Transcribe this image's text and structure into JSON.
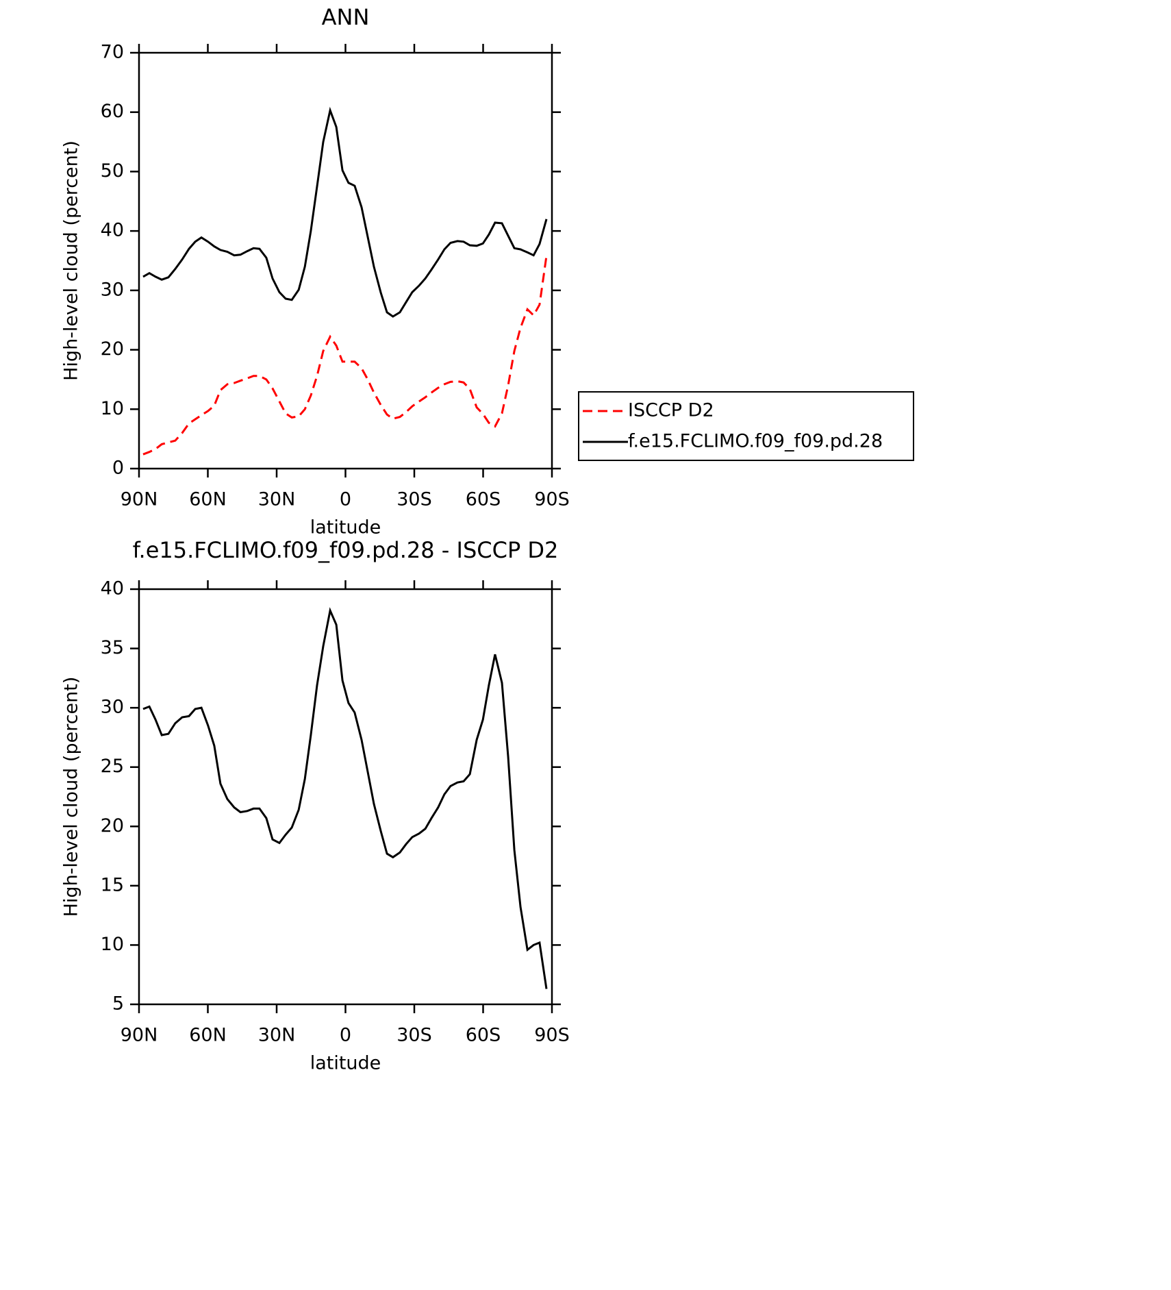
{
  "chart_data": [
    {
      "type": "line",
      "title": "ANN",
      "x_label": "latitude",
      "y_label": "High-level cloud (percent)",
      "x": [
        88.2,
        85.5,
        82.8,
        80.1,
        77.2,
        74.2,
        71.2,
        68.2,
        65.5,
        62.8,
        59.9,
        57.2,
        54.5,
        51.5,
        48.5,
        45.8,
        42.8,
        40.1,
        37.5,
        34.5,
        31.8,
        28.8,
        26.1,
        23.4,
        20.4,
        17.7,
        15.1,
        12.4,
        9.7,
        6.7,
        4.0,
        1.3,
        -1.3,
        -4.0,
        -7.0,
        -9.7,
        -12.4,
        -15.4,
        -18.1,
        -20.7,
        -23.7,
        -26.4,
        -29.1,
        -32.1,
        -34.8,
        -37.5,
        -40.4,
        -43.1,
        -45.8,
        -48.8,
        -51.5,
        -54.2,
        -57.2,
        -59.9,
        -62.5,
        -65.2,
        -68.2,
        -70.9,
        -73.6,
        -76.3,
        -79.3,
        -82.0,
        -84.6,
        -87.6
      ],
      "series": [
        {
          "name": "ISCCP D2",
          "color": "#ff0000",
          "dashed": true,
          "values": [
            2.4,
            2.8,
            3.3,
            4.1,
            4.4,
            4.7,
            6.0,
            7.6,
            8.3,
            9.0,
            9.7,
            10.6,
            13.2,
            14.2,
            14.4,
            14.8,
            15.2,
            15.6,
            15.6,
            15.0,
            13.5,
            11.3,
            9.3,
            8.6,
            8.8,
            10.0,
            12.3,
            15.6,
            19.8,
            22.2,
            20.7,
            18.0,
            18.0,
            18.0,
            16.9,
            15.0,
            12.8,
            10.7,
            9.1,
            8.4,
            8.7,
            9.5,
            10.5,
            11.3,
            12.0,
            12.8,
            13.6,
            14.2,
            14.6,
            14.7,
            14.5,
            13.4,
            10.3,
            9.2,
            7.7,
            7.1,
            9.3,
            14.0,
            19.8,
            23.7,
            26.8,
            25.8,
            27.6,
            35.8
          ]
        },
        {
          "name": "f.e15.FCLIMO.f09_f09.pd.28",
          "color": "#000000",
          "dashed": false,
          "values": [
            32.3,
            32.9,
            32.3,
            31.8,
            32.2,
            33.6,
            35.2,
            37.0,
            38.2,
            38.9,
            38.2,
            37.4,
            36.8,
            36.5,
            35.9,
            36.0,
            36.6,
            37.1,
            37.0,
            35.5,
            32.0,
            29.7,
            28.6,
            28.4,
            30.1,
            34.0,
            40.0,
            47.5,
            55.0,
            60.3,
            57.5,
            50.2,
            48.1,
            47.6,
            44.0,
            39.0,
            34.0,
            29.6,
            26.3,
            25.6,
            26.3,
            28.0,
            29.7,
            30.8,
            32.0,
            33.5,
            35.2,
            36.9,
            38.0,
            38.3,
            38.2,
            37.6,
            37.5,
            37.9,
            39.4,
            41.4,
            41.3,
            39.2,
            37.1,
            36.9,
            36.4,
            35.9,
            37.8,
            42.0
          ]
        }
      ],
      "xlim": [
        90,
        -90
      ],
      "xticks": [
        {
          "value": 90,
          "label": "90N"
        },
        {
          "value": 60,
          "label": "60N"
        },
        {
          "value": 30,
          "label": "30N"
        },
        0,
        {
          "value": -30,
          "label": "30S"
        },
        {
          "value": -60,
          "label": "60S"
        },
        {
          "value": -90,
          "label": "90S"
        }
      ],
      "ylim": [
        0,
        70
      ],
      "yticks": [
        0,
        10,
        20,
        30,
        40,
        50,
        60,
        70
      ],
      "legend": "outside-right"
    },
    {
      "type": "line",
      "title": "f.e15.FCLIMO.f09_f09.pd.28 - ISCCP D2",
      "x_label": "latitude",
      "y_label": "High-level cloud (percent)",
      "x": [
        88.2,
        85.5,
        82.8,
        80.1,
        77.2,
        74.2,
        71.2,
        68.2,
        65.5,
        62.8,
        59.9,
        57.2,
        54.5,
        51.5,
        48.5,
        45.8,
        42.8,
        40.1,
        37.5,
        34.5,
        31.8,
        28.8,
        26.1,
        23.4,
        20.4,
        17.7,
        15.1,
        12.4,
        9.7,
        6.7,
        4.0,
        1.3,
        -1.3,
        -4.0,
        -7.0,
        -9.7,
        -12.4,
        -15.4,
        -18.1,
        -20.7,
        -23.7,
        -26.4,
        -29.1,
        -32.1,
        -34.8,
        -37.5,
        -40.4,
        -43.1,
        -45.8,
        -48.8,
        -51.5,
        -54.2,
        -57.2,
        -59.9,
        -62.5,
        -65.2,
        -68.2,
        -70.9,
        -73.6,
        -76.3,
        -79.3,
        -82.0,
        -84.6,
        -87.6
      ],
      "values": [
        29.9,
        30.1,
        29.0,
        27.7,
        27.8,
        28.7,
        29.2,
        29.3,
        29.9,
        30.0,
        28.5,
        26.8,
        23.6,
        22.3,
        21.6,
        21.2,
        21.3,
        21.5,
        21.5,
        20.7,
        18.9,
        18.6,
        19.3,
        19.9,
        21.4,
        24.0,
        27.7,
        31.9,
        35.2,
        38.2,
        37.0,
        32.3,
        30.4,
        29.6,
        27.3,
        24.6,
        21.9,
        19.6,
        17.7,
        17.4,
        17.8,
        18.5,
        19.1,
        19.4,
        19.8,
        20.7,
        21.6,
        22.7,
        23.4,
        23.7,
        23.8,
        24.4,
        27.3,
        29.0,
        31.9,
        34.5,
        32.1,
        25.9,
        18.0,
        13.2,
        9.6,
        10.0,
        10.2,
        6.3
      ],
      "color": "#000000",
      "xlim": [
        90,
        -90
      ],
      "xticks": [
        {
          "value": 90,
          "label": "90N"
        },
        {
          "value": 60,
          "label": "60N"
        },
        {
          "value": 30,
          "label": "30N"
        },
        0,
        {
          "value": -30,
          "label": "30S"
        },
        {
          "value": -60,
          "label": "60S"
        },
        {
          "value": -90,
          "label": "90S"
        }
      ],
      "ylim": [
        5,
        40
      ],
      "yticks": [
        5,
        10,
        15,
        20,
        25,
        30,
        35,
        40
      ]
    }
  ]
}
